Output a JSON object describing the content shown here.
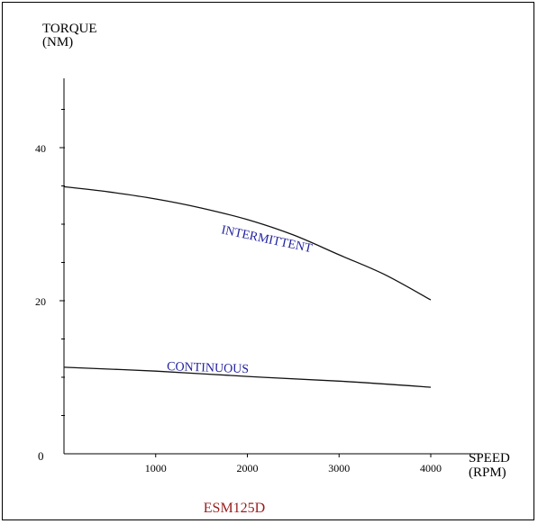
{
  "chart_data": {
    "type": "line",
    "title": "ESM125D",
    "y_axis": {
      "label_line1": "TORQUE",
      "label_line2": "(NM)",
      "ylim": [
        0,
        50
      ],
      "ticks": [
        0,
        20,
        40
      ],
      "minor_step": 5
    },
    "x_axis": {
      "label_line1": "SPEED",
      "label_line2": "(RPM)",
      "xlim": [
        0,
        4200
      ],
      "ticks": [
        1000,
        2000,
        3000,
        4000
      ]
    },
    "origin_label": "0",
    "series": [
      {
        "name": "INTERMITTENT",
        "color": "#1f1f9e",
        "x": [
          0,
          500,
          1000,
          1500,
          2000,
          2500,
          3000,
          3500,
          4000
        ],
        "y": [
          34.9,
          34.2,
          33.3,
          32.1,
          30.6,
          28.6,
          26.0,
          23.4,
          20.1
        ]
      },
      {
        "name": "CONTINUOUS",
        "color": "#1f1f9e",
        "x": [
          0,
          1000,
          2000,
          3000,
          4000
        ],
        "y": [
          11.3,
          10.8,
          10.1,
          9.5,
          8.7
        ]
      }
    ],
    "title_color": "#9b1c1c",
    "grid": false
  }
}
